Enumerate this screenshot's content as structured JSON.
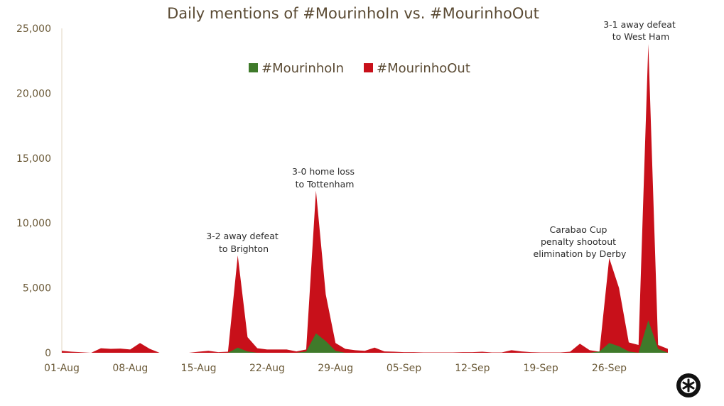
{
  "chart_data": {
    "type": "area",
    "title": "Daily mentions of #MourinhoIn vs. #MourinhoOut",
    "xlabel": "",
    "ylabel": "",
    "ylim": [
      0,
      25000
    ],
    "yticks": [
      0,
      5000,
      10000,
      15000,
      20000,
      25000
    ],
    "ytick_labels": [
      "0",
      "5,000",
      "10,000",
      "15,000",
      "20,000",
      "25,000"
    ],
    "xtick_labels": [
      "01-Aug",
      "08-Aug",
      "15-Aug",
      "22-Aug",
      "29-Aug",
      "05-Sep",
      "12-Sep",
      "19-Sep",
      "26-Sep"
    ],
    "xtick_index": [
      0,
      7,
      14,
      21,
      28,
      35,
      42,
      49,
      56
    ],
    "x": [
      "01-Aug",
      "02-Aug",
      "03-Aug",
      "04-Aug",
      "05-Aug",
      "06-Aug",
      "07-Aug",
      "08-Aug",
      "09-Aug",
      "10-Aug",
      "11-Aug",
      "12-Aug",
      "13-Aug",
      "14-Aug",
      "15-Aug",
      "16-Aug",
      "17-Aug",
      "18-Aug",
      "19-Aug",
      "20-Aug",
      "21-Aug",
      "22-Aug",
      "23-Aug",
      "24-Aug",
      "25-Aug",
      "26-Aug",
      "27-Aug",
      "28-Aug",
      "29-Aug",
      "30-Aug",
      "31-Aug",
      "01-Sep",
      "02-Sep",
      "03-Sep",
      "04-Sep",
      "05-Sep",
      "06-Sep",
      "07-Sep",
      "08-Sep",
      "09-Sep",
      "10-Sep",
      "11-Sep",
      "12-Sep",
      "13-Sep",
      "14-Sep",
      "15-Sep",
      "16-Sep",
      "17-Sep",
      "18-Sep",
      "19-Sep",
      "20-Sep",
      "21-Sep",
      "22-Sep",
      "23-Sep",
      "24-Sep",
      "25-Sep",
      "26-Sep",
      "27-Sep",
      "28-Sep",
      "29-Sep",
      "30-Sep",
      "01-Oct",
      "02-Oct"
    ],
    "series": [
      {
        "name": "#MourinhoOut",
        "color": "#c8101a",
        "values": [
          150,
          80,
          40,
          0,
          350,
          300,
          320,
          250,
          750,
          300,
          0,
          0,
          0,
          0,
          80,
          150,
          50,
          80,
          7500,
          1200,
          350,
          250,
          250,
          250,
          100,
          250,
          12500,
          4500,
          750,
          300,
          200,
          150,
          400,
          100,
          80,
          50,
          50,
          30,
          30,
          30,
          30,
          50,
          50,
          80,
          30,
          30,
          200,
          100,
          50,
          30,
          30,
          30,
          80,
          700,
          200,
          80,
          7300,
          5000,
          800,
          600,
          23800,
          600,
          300
        ]
      },
      {
        "name": "#MourinhoIn",
        "color": "#3f7a2a",
        "values": [
          0,
          0,
          0,
          0,
          0,
          0,
          0,
          0,
          0,
          0,
          0,
          0,
          0,
          0,
          0,
          0,
          0,
          0,
          400,
          100,
          0,
          0,
          0,
          0,
          0,
          100,
          1500,
          900,
          150,
          0,
          0,
          0,
          0,
          0,
          0,
          0,
          0,
          0,
          0,
          0,
          0,
          0,
          0,
          0,
          0,
          0,
          0,
          0,
          0,
          0,
          0,
          0,
          0,
          0,
          0,
          100,
          750,
          500,
          100,
          0,
          2500,
          300,
          0
        ]
      }
    ],
    "legend": {
      "placement": "top-center",
      "items": [
        {
          "label": "#MourinhoIn",
          "color": "#3f7a2a"
        },
        {
          "label": "#MourinhoOut",
          "color": "#c8101a"
        }
      ]
    },
    "annotations": [
      {
        "lines": [
          "3-2 away defeat",
          "to Brighton"
        ],
        "x_index": 18
      },
      {
        "lines": [
          "3-0 home loss",
          "to Tottenham"
        ],
        "x_index": 26
      },
      {
        "lines": [
          "Carabao Cup",
          "penalty shootout",
          "elimination by Derby"
        ],
        "x_index": 56
      },
      {
        "lines": [
          "3-1 away defeat",
          "to West Ham"
        ],
        "x_index": 60
      }
    ],
    "grid": false
  },
  "logo": {
    "icon": "asterisk-logo-icon",
    "color": "#111111"
  }
}
